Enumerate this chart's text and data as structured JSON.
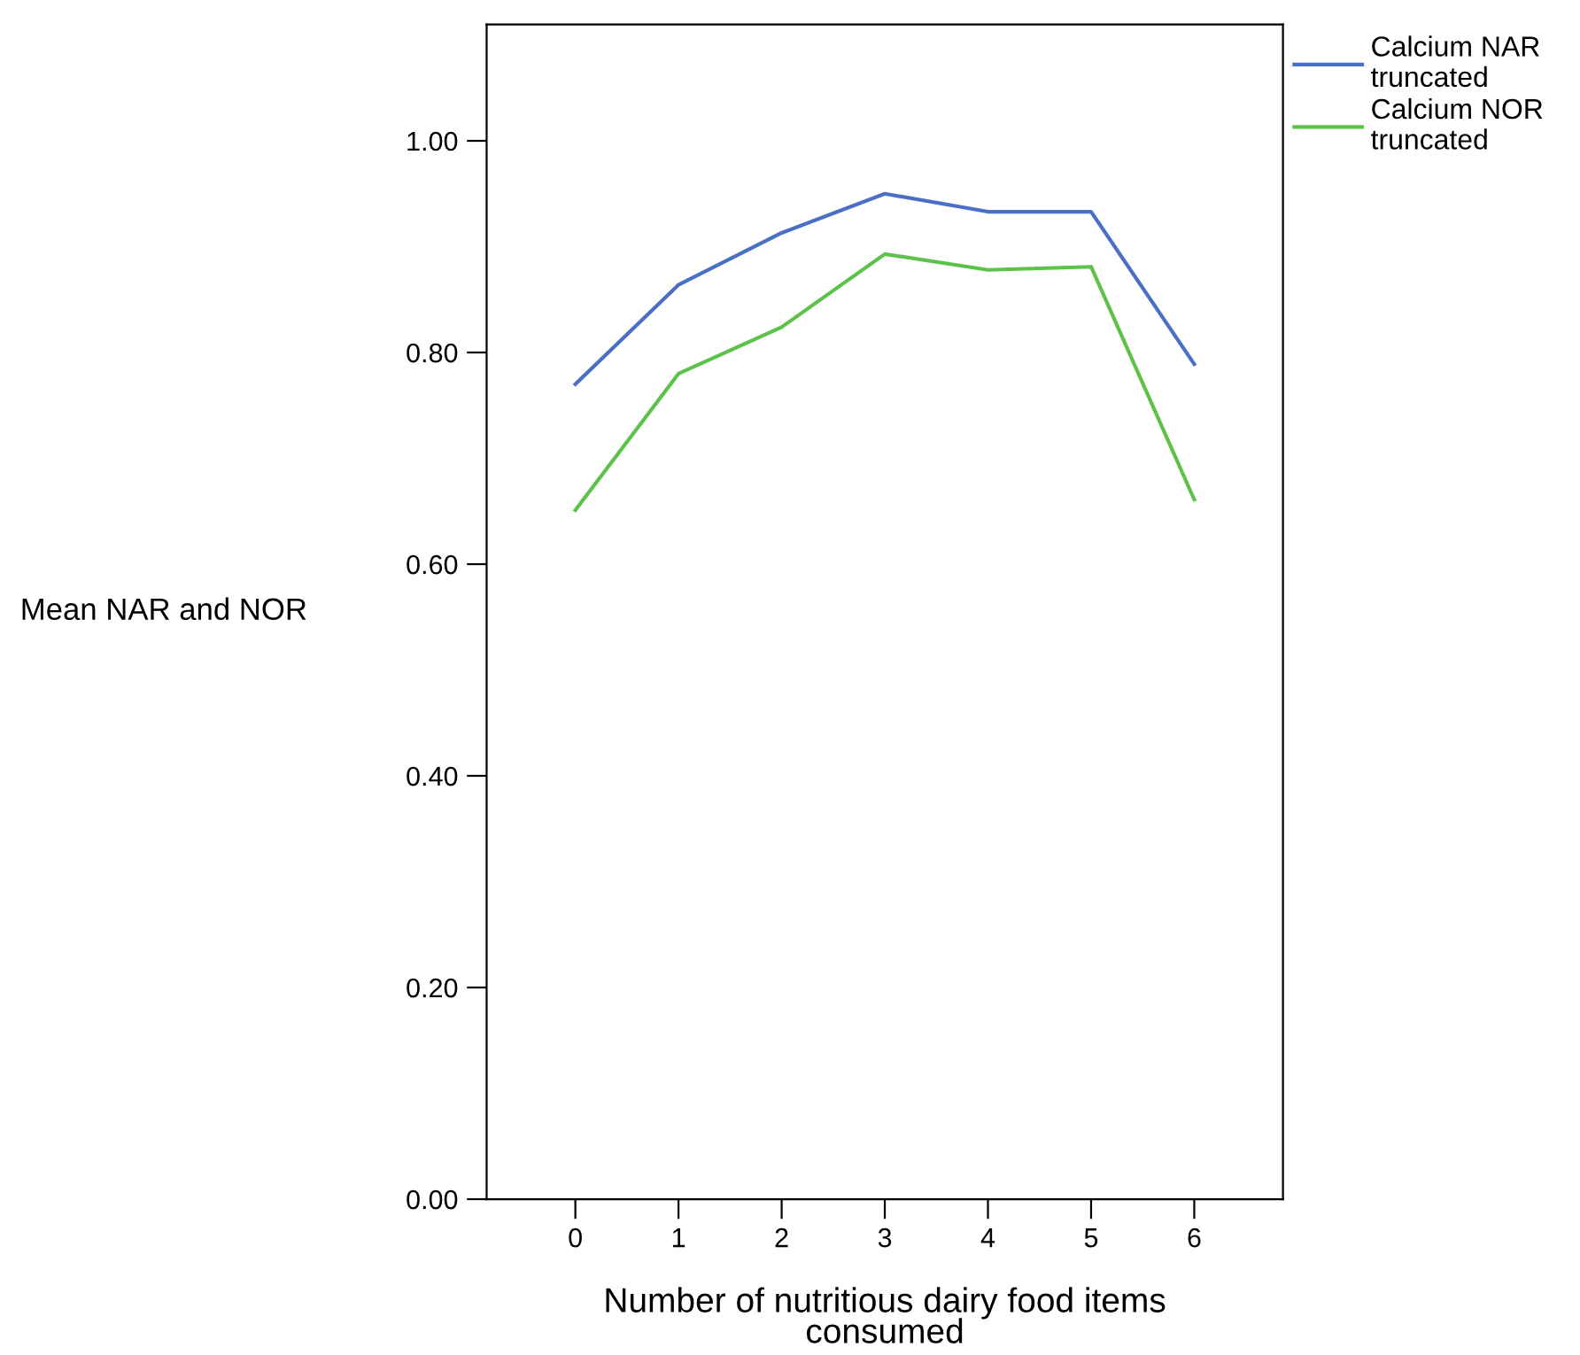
{
  "chart_data": {
    "type": "line",
    "xlabel": "Number of nutritious dairy food items\nconsumed",
    "ylabel": "Mean NAR and NOR",
    "categories": [
      "0",
      "1",
      "2",
      "3",
      "4",
      "5",
      "6"
    ],
    "series": [
      {
        "name": "Calcium NAR\ntruncated",
        "color": "#4a6fc4",
        "values": [
          0.77,
          0.864,
          0.913,
          0.95,
          0.933,
          0.933,
          0.789
        ]
      },
      {
        "name": "Calcium NOR\ntruncated",
        "color": "#5cc24a",
        "values": [
          0.651,
          0.78,
          0.824,
          0.893,
          0.878,
          0.881,
          0.661
        ]
      }
    ],
    "ylim": [
      0,
      1.11
    ],
    "yticks": [
      {
        "value": 0,
        "label": "0.00"
      },
      {
        "value": 0.2,
        "label": "0.20"
      },
      {
        "value": 0.4,
        "label": "0.40"
      },
      {
        "value": 0.6,
        "label": "0.60"
      },
      {
        "value": 0.8,
        "label": "0.80"
      },
      {
        "value": 1.0,
        "label": "1.00"
      }
    ],
    "grid": false,
    "legend": "top right",
    "marker": "none",
    "line_style": "solid"
  }
}
